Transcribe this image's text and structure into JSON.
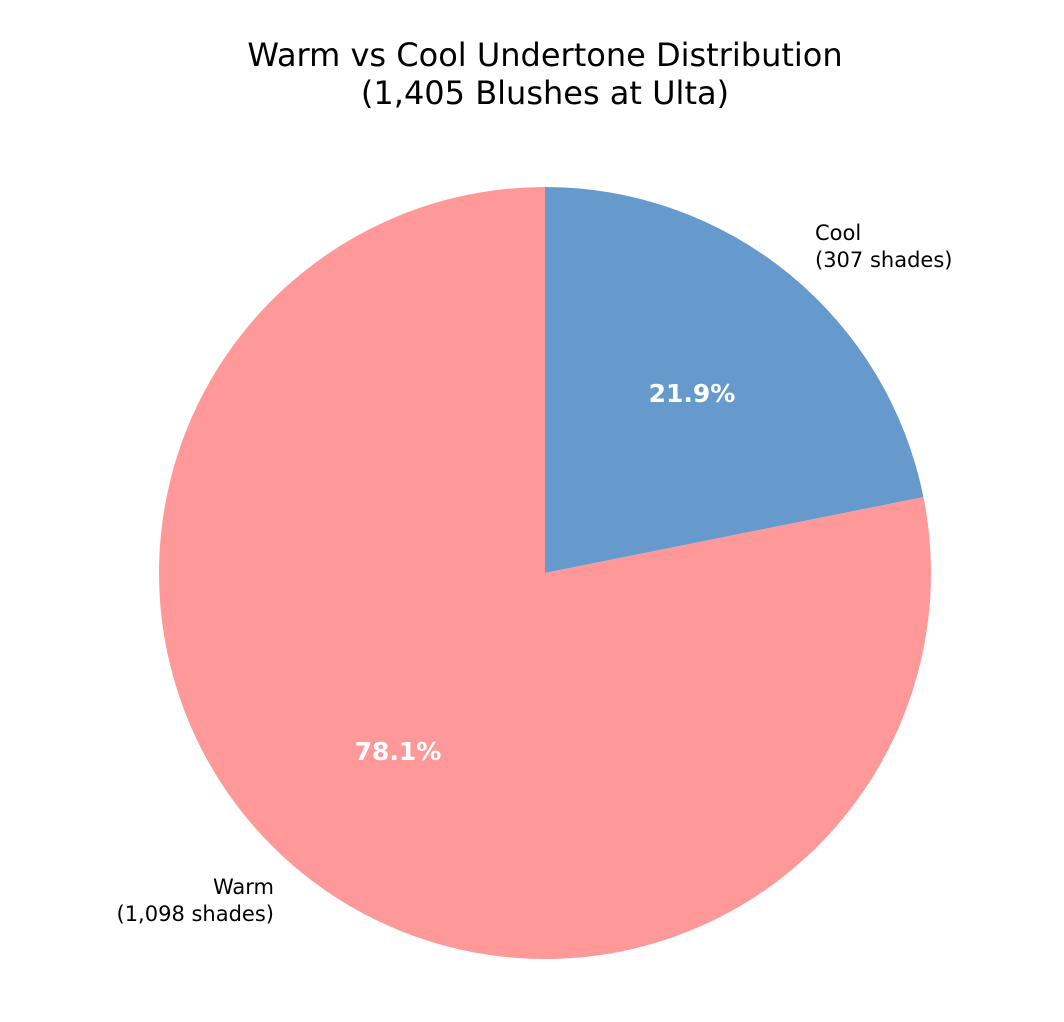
{
  "chart_data": {
    "type": "pie",
    "title": [
      "Warm vs Cool Undertone Distribution",
      "(1,405 Blushes at Ulta)"
    ],
    "start_angle_deg": 90,
    "direction": "clockwise",
    "legend": "none",
    "slices": [
      {
        "name": "Cool",
        "count_label": "(307 shades)",
        "value": 307,
        "percent_label": "21.9%",
        "color": "#6699cc"
      },
      {
        "name": "Warm",
        "count_label": "(1,098 shades)",
        "value": 1098,
        "percent_label": "78.1%",
        "color": "#ff9999"
      }
    ]
  }
}
